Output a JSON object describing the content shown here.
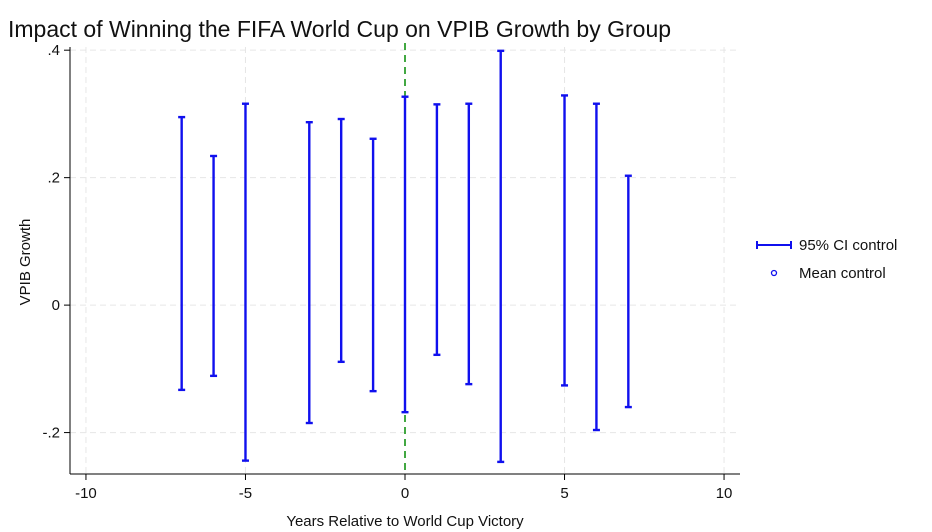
{
  "chart_data": {
    "type": "errorbar",
    "title": "Impact of Winning the FIFA World Cup on VPIB Growth by Group",
    "xlabel": "Years Relative to World Cup Victory",
    "ylabel": "VPIB Growth",
    "xlim": [
      -10.5,
      10.5
    ],
    "ylim": [
      -0.265,
      0.405
    ],
    "xticks": [
      {
        "value": -10,
        "label": "-10"
      },
      {
        "value": -5,
        "label": "-5"
      },
      {
        "value": 0,
        "label": "0"
      },
      {
        "value": 5,
        "label": "5"
      },
      {
        "value": 10,
        "label": "10"
      }
    ],
    "yticks": [
      {
        "value": -0.2,
        "label": "-.2"
      },
      {
        "value": 0,
        "label": "0"
      },
      {
        "value": 0.2,
        "label": ".2"
      },
      {
        "value": 0.4,
        "label": ".4"
      }
    ],
    "grid": true,
    "reference_line": {
      "x": 0,
      "color": "#2e9e2e",
      "style": "dashed"
    },
    "series": [
      {
        "name": "95% CI control",
        "color": "#1010ee",
        "points": [
          {
            "x": -7,
            "low": -0.133,
            "high": 0.295
          },
          {
            "x": -6,
            "low": -0.111,
            "high": 0.234
          },
          {
            "x": -5,
            "low": -0.244,
            "high": 0.316
          },
          {
            "x": -3,
            "low": -0.185,
            "high": 0.287
          },
          {
            "x": -2,
            "low": -0.089,
            "high": 0.292
          },
          {
            "x": -1,
            "low": -0.135,
            "high": 0.261
          },
          {
            "x": 0,
            "low": -0.168,
            "high": 0.327
          },
          {
            "x": 1,
            "low": -0.078,
            "high": 0.315
          },
          {
            "x": 2,
            "low": -0.124,
            "high": 0.316
          },
          {
            "x": 3,
            "low": -0.246,
            "high": 0.399
          },
          {
            "x": 5,
            "low": -0.126,
            "high": 0.329
          },
          {
            "x": 6,
            "low": -0.196,
            "high": 0.316
          },
          {
            "x": 7,
            "low": -0.16,
            "high": 0.203
          }
        ]
      },
      {
        "name": "Mean control",
        "color": "#1010ee",
        "marker": "hollow-circle",
        "points": []
      }
    ],
    "legend": {
      "position": "right",
      "entries": [
        {
          "label": "95% CI control",
          "symbol": "errorbar"
        },
        {
          "label": "Mean control",
          "symbol": "hollow-circle"
        }
      ]
    }
  }
}
